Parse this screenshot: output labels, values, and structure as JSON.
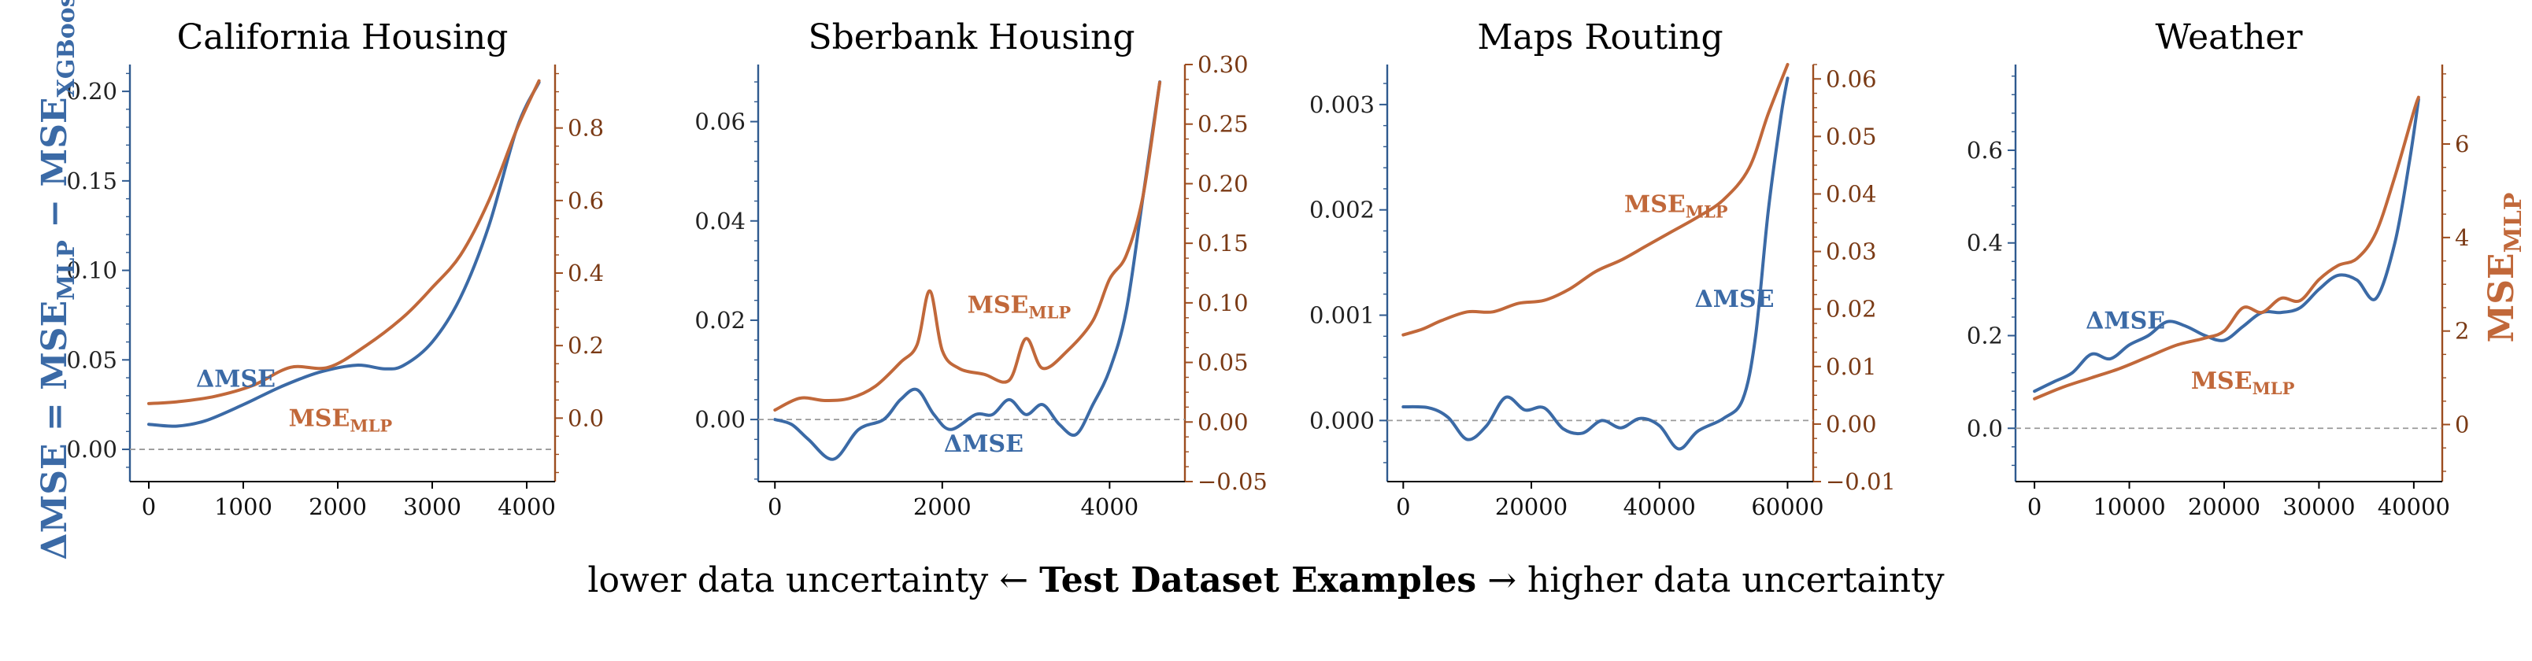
{
  "figure": {
    "ylabel_left": "ΔMSE = MSEMLP − MSEXGBoost",
    "ylabel_right": "MSEMLP",
    "xlabel_left": "lower data uncertainty ←",
    "xlabel_bold": "Test Dataset Examples",
    "xlabel_right": "→ higher data uncertainty",
    "colors": {
      "delta": "#3b6aa6",
      "mse": "#c1683a",
      "baseline": "#9a9a9a"
    }
  },
  "chart_data": [
    {
      "type": "line",
      "title": "California Housing",
      "xlim": [
        -200,
        4300
      ],
      "ylim": [
        -0.018,
        0.215
      ],
      "ylim_right": [
        -0.175,
        0.975
      ],
      "xticks": [
        0,
        1000,
        2000,
        3000,
        4000
      ],
      "yticks": [
        0.0,
        0.05,
        0.1,
        0.15,
        0.2
      ],
      "ytick_labels": [
        "0.00",
        "0.05",
        "0.10",
        "0.15",
        "0.20"
      ],
      "yticks_right": [
        0.0,
        0.2,
        0.4,
        0.6,
        0.8
      ],
      "ytick_labels_right": [
        "0.0",
        "0.2",
        "0.4",
        "0.6",
        "0.8"
      ],
      "annotations": [
        {
          "text": "ΔMSE",
          "series": "delta",
          "x": 500,
          "y": 0.035
        },
        {
          "text": "MSE",
          "sub": "MLP",
          "series": "mse",
          "x": 1480,
          "y": 0.013
        }
      ],
      "series": [
        {
          "key": "delta",
          "axis": "left",
          "x": [
            0,
            300,
            600,
            1000,
            1400,
            1800,
            2200,
            2500,
            2700,
            3000,
            3300,
            3600,
            3900,
            4130
          ],
          "y": [
            0.014,
            0.013,
            0.016,
            0.025,
            0.035,
            0.043,
            0.047,
            0.045,
            0.047,
            0.06,
            0.085,
            0.125,
            0.18,
            0.205
          ]
        },
        {
          "key": "mse",
          "axis": "right",
          "x": [
            0,
            300,
            700,
            1100,
            1500,
            1900,
            2300,
            2700,
            3000,
            3300,
            3600,
            3900,
            4130
          ],
          "y": [
            0.04,
            0.045,
            0.06,
            0.09,
            0.14,
            0.14,
            0.2,
            0.28,
            0.36,
            0.45,
            0.6,
            0.8,
            0.93
          ]
        }
      ]
    },
    {
      "type": "line",
      "title": "Sberbank Housing",
      "xlim": [
        -200,
        4900
      ],
      "ylim": [
        -0.0125,
        0.0715
      ],
      "ylim_right": [
        -0.05,
        0.3
      ],
      "xticks": [
        0,
        2000,
        4000
      ],
      "yticks": [
        0.0,
        0.02,
        0.04,
        0.06
      ],
      "ytick_labels": [
        "0.00",
        "0.02",
        "0.04",
        "0.06"
      ],
      "yticks_right": [
        -0.05,
        0.0,
        0.05,
        0.1,
        0.15,
        0.2,
        0.25,
        0.3
      ],
      "ytick_labels_right": [
        "−0.05",
        "0.00",
        "0.05",
        "0.10",
        "0.15",
        "0.20",
        "0.25",
        "0.30"
      ],
      "annotations": [
        {
          "text": "MSE",
          "sub": "MLP",
          "series": "mse",
          "x": 2300,
          "y": 0.0215
        },
        {
          "text": "ΔMSE",
          "series": "delta",
          "x": 2020,
          "y": -0.0065
        }
      ],
      "series": [
        {
          "key": "delta",
          "axis": "left",
          "x": [
            0,
            200,
            400,
            700,
            1000,
            1300,
            1500,
            1700,
            1900,
            2100,
            2400,
            2600,
            2800,
            3000,
            3200,
            3400,
            3600,
            3800,
            4000,
            4200,
            4400,
            4600
          ],
          "y": [
            0.0,
            -0.001,
            -0.004,
            -0.008,
            -0.002,
            0.0,
            0.004,
            0.006,
            0.001,
            -0.002,
            0.001,
            0.001,
            0.004,
            0.001,
            0.003,
            -0.001,
            -0.003,
            0.003,
            0.01,
            0.022,
            0.045,
            0.068
          ]
        },
        {
          "key": "mse",
          "axis": "right",
          "x": [
            0,
            300,
            600,
            900,
            1200,
            1500,
            1700,
            1850,
            2000,
            2200,
            2500,
            2800,
            3000,
            3200,
            3500,
            3800,
            4000,
            4200,
            4400,
            4600
          ],
          "y": [
            0.01,
            0.02,
            0.018,
            0.02,
            0.03,
            0.05,
            0.065,
            0.11,
            0.06,
            0.045,
            0.04,
            0.035,
            0.07,
            0.045,
            0.06,
            0.085,
            0.12,
            0.14,
            0.19,
            0.285
          ]
        }
      ]
    },
    {
      "type": "line",
      "title": "Maps Routing",
      "xlim": [
        -2500,
        64000
      ],
      "ylim": [
        -0.00058,
        0.00338
      ],
      "ylim_right": [
        -0.01,
        0.0625
      ],
      "xticks": [
        0,
        20000,
        40000,
        60000
      ],
      "yticks": [
        0.0,
        0.001,
        0.002,
        0.003
      ],
      "ytick_labels": [
        "0.000",
        "0.001",
        "0.002",
        "0.003"
      ],
      "yticks_right": [
        -0.01,
        0.0,
        0.01,
        0.02,
        0.03,
        0.04,
        0.05,
        0.06
      ],
      "ytick_labels_right": [
        "−0.01",
        "0.00",
        "0.01",
        "0.02",
        "0.03",
        "0.04",
        "0.05",
        "0.06"
      ],
      "annotations": [
        {
          "text": "MSE",
          "sub": "MLP",
          "series": "mse",
          "x": 34500,
          "y": 0.00198
        },
        {
          "text": "ΔMSE",
          "series": "delta",
          "x": 45500,
          "y": 0.00108
        }
      ],
      "series": [
        {
          "key": "delta",
          "axis": "left",
          "x": [
            0,
            4000,
            7000,
            10000,
            13000,
            16000,
            19000,
            22000,
            25000,
            28000,
            31000,
            34000,
            37000,
            40000,
            43000,
            46000,
            50000,
            53000,
            55000,
            57000,
            59000,
            60000
          ],
          "y": [
            0.00013,
            0.00012,
            3e-05,
            -0.00018,
            -5e-05,
            0.00022,
            0.0001,
            0.00012,
            -8e-05,
            -0.00012,
            0.0,
            -7e-05,
            2e-05,
            -5e-05,
            -0.00027,
            -0.0001,
            2e-05,
            0.0002,
            0.0008,
            0.002,
            0.0029,
            0.00325
          ]
        },
        {
          "key": "mse",
          "axis": "right",
          "x": [
            0,
            3000,
            6000,
            10000,
            14000,
            18000,
            22000,
            26000,
            30000,
            34000,
            38000,
            42000,
            46000,
            50000,
            54000,
            57000,
            60000
          ],
          "y": [
            0.0155,
            0.0165,
            0.018,
            0.0195,
            0.0195,
            0.021,
            0.0215,
            0.0235,
            0.0265,
            0.0285,
            0.031,
            0.0335,
            0.036,
            0.039,
            0.0445,
            0.054,
            0.0625
          ]
        }
      ]
    },
    {
      "type": "line",
      "title": "Weather",
      "xlim": [
        -2000,
        43000
      ],
      "ylim": [
        -0.115,
        0.785
      ],
      "ylim_right": [
        -1.22,
        7.7
      ],
      "xticks": [
        0,
        10000,
        20000,
        30000,
        40000
      ],
      "yticks": [
        0.0,
        0.2,
        0.4,
        0.6
      ],
      "ytick_labels": [
        "0.0",
        "0.2",
        "0.4",
        "0.6"
      ],
      "yticks_right": [
        0,
        2,
        4,
        6
      ],
      "ytick_labels_right": [
        "0",
        "2",
        "4",
        "6"
      ],
      "annotations": [
        {
          "text": "ΔMSE",
          "series": "delta",
          "x": 5400,
          "y": 0.215
        },
        {
          "text": "MSE",
          "sub": "MLP",
          "series": "mse",
          "x": 16500,
          "y": 0.085
        }
      ],
      "series": [
        {
          "key": "delta",
          "axis": "left",
          "x": [
            0,
            2000,
            4000,
            6000,
            8000,
            10000,
            12000,
            14000,
            16000,
            18000,
            20000,
            22000,
            24000,
            26000,
            28000,
            30000,
            32000,
            34000,
            36000,
            38000,
            39500,
            40500
          ],
          "y": [
            0.08,
            0.1,
            0.12,
            0.16,
            0.15,
            0.18,
            0.2,
            0.23,
            0.22,
            0.2,
            0.19,
            0.22,
            0.25,
            0.25,
            0.26,
            0.3,
            0.33,
            0.32,
            0.28,
            0.4,
            0.57,
            0.71
          ]
        },
        {
          "key": "mse",
          "axis": "right",
          "x": [
            0,
            3000,
            6000,
            9000,
            12000,
            15000,
            18000,
            20000,
            22000,
            24000,
            26000,
            28000,
            30000,
            32000,
            34000,
            36000,
            38000,
            40000,
            40500
          ],
          "y": [
            0.55,
            0.8,
            1.0,
            1.2,
            1.45,
            1.7,
            1.85,
            2.0,
            2.5,
            2.4,
            2.7,
            2.65,
            3.1,
            3.4,
            3.55,
            4.1,
            5.3,
            6.7,
            7.0
          ]
        }
      ]
    }
  ]
}
